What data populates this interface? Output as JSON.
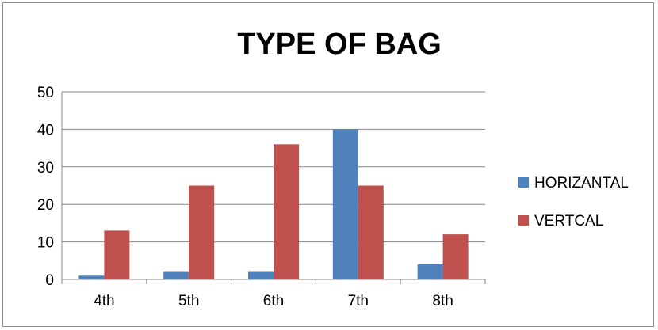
{
  "chart_data": {
    "type": "bar",
    "title": "TYPE OF BAG",
    "categories": [
      "4th",
      "5th",
      "6th",
      "7th",
      "8th"
    ],
    "series": [
      {
        "name": "HORIZANTAL",
        "values": [
          1,
          2,
          2,
          40,
          4
        ],
        "color": "#4F81BD"
      },
      {
        "name": "VERTCAL",
        "values": [
          13,
          25,
          36,
          25,
          12
        ],
        "color": "#C0504D"
      }
    ],
    "yticks": [
      0,
      10,
      20,
      30,
      40,
      50
    ],
    "ylim": [
      0,
      50
    ],
    "grid": true,
    "legend": "right"
  }
}
